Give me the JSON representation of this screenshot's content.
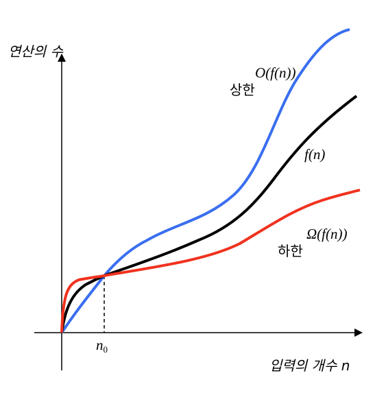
{
  "axes": {
    "y_label": "연산의 수",
    "x_label": "입력의 개수 n"
  },
  "threshold": {
    "label": "n",
    "subscript": "0"
  },
  "curves": [
    {
      "name": "상한",
      "notation": "O(f(n))"
    },
    {
      "notation": "f(n)"
    },
    {
      "name": "하한",
      "notation": "Ω(f(n))"
    }
  ]
}
